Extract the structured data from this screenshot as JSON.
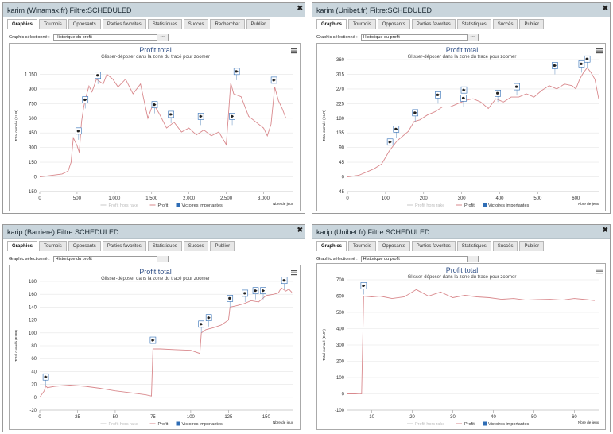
{
  "common": {
    "tabs": [
      "Graphics",
      "Tournois",
      "Opposants",
      "Parties favorites",
      "Statistiques",
      "Succès",
      "Rechercher",
      "Publier"
    ],
    "select_label": "Graphic sélectionné :",
    "select_value": "Historique du profit",
    "chart_title": "Profit total",
    "chart_subtitle": "Glisser-déposer dans la zone du tracé pour zoomer",
    "ylabel": "Total cumulé (EUR)",
    "xlabel": "Nbre de jeux",
    "legend": [
      "Profit hors rake",
      "Profit",
      "Victoires importantes"
    ],
    "colors": {
      "profit": "#d9898d",
      "rake": "#c8c8c8",
      "victory": "#2f6db5",
      "title": "#2f4f86"
    },
    "icons": {
      "close": "close-icon",
      "menu": "menu-icon",
      "victory_marker": "victory-flag-icon"
    }
  },
  "panels": [
    {
      "title": "karim (Winamax.fr) Filtre:SCHEDULED",
      "tabs": [
        "Graphics",
        "Tournois",
        "Opposants",
        "Parties favorites",
        "Statistiques",
        "Succès",
        "Rechercher",
        "Publier"
      ],
      "chart_data": {
        "type": "line",
        "title": "Profit total",
        "subtitle": "Glisser-déposer dans la zone du tracé pour zoomer",
        "ylabel": "Total cumulé (EUR)",
        "xlabel": "Nbre de jeux",
        "yticks": [
          "-150",
          "0",
          "150",
          "300",
          "450",
          "600",
          "750",
          "900",
          "1 050",
          "1,2K"
        ],
        "ylim": [
          -150,
          1200
        ],
        "xticks": [
          "0",
          "500",
          "1,000",
          "1,500",
          "2,000",
          "2,500",
          "3,000"
        ],
        "xlim": [
          0,
          3400
        ],
        "series": [
          {
            "name": "Profit",
            "x": [
              0,
              300,
              380,
              420,
              450,
              500,
              530,
              560,
              590,
              620,
              660,
              700,
              760,
              850,
              900,
              980,
              1050,
              1150,
              1250,
              1350,
              1450,
              1520,
              1600,
              1700,
              1800,
              1900,
              2000,
              2100,
              2200,
              2300,
              2400,
              2500,
              2560,
              2600,
              2700,
              2800,
              2900,
              3000,
              3050,
              3100,
              3150,
              3200,
              3250,
              3300
            ],
            "y": [
              0,
              30,
              60,
              150,
              400,
              320,
              250,
              560,
              720,
              820,
              930,
              870,
              1000,
              950,
              1050,
              1000,
              920,
              1000,
              850,
              950,
              600,
              750,
              650,
              500,
              560,
              460,
              500,
              430,
              480,
              420,
              460,
              330,
              960,
              850,
              820,
              620,
              560,
              500,
              420,
              540,
              920,
              780,
              700,
              600
            ]
          }
        ],
        "victories": [
          {
            "x": 520,
            "y": 380
          },
          {
            "x": 610,
            "y": 700
          },
          {
            "x": 780,
            "y": 950
          },
          {
            "x": 1540,
            "y": 650
          },
          {
            "x": 1760,
            "y": 550
          },
          {
            "x": 2160,
            "y": 530
          },
          {
            "x": 2580,
            "y": 530
          },
          {
            "x": 2640,
            "y": 990
          },
          {
            "x": 3140,
            "y": 900
          }
        ]
      }
    },
    {
      "title": "karim (Unibet.fr) Filtre:SCHEDULED",
      "tabs": [
        "Graphics",
        "Tournois",
        "Opposants",
        "Parties favorites",
        "Statistiques",
        "Succès",
        "Publier"
      ],
      "chart_data": {
        "type": "line",
        "title": "Profit total",
        "subtitle": "Glisser-déposer dans la zone du tracé pour zoomer",
        "ylabel": "Total cumulé (EUR)",
        "xlabel": "Nbre de jeux",
        "yticks": [
          "-45",
          "0",
          "45",
          "90",
          "135",
          "180",
          "225",
          "270",
          "315",
          "360"
        ],
        "ylim": [
          -45,
          360
        ],
        "xticks": [
          "0",
          "100",
          "200",
          "300",
          "400",
          "500",
          "600"
        ],
        "xlim": [
          0,
          660
        ],
        "series": [
          {
            "name": "Profit",
            "x": [
              0,
              30,
              50,
              70,
              90,
              100,
              110,
              120,
              130,
              140,
              150,
              160,
              175,
              190,
              210,
              230,
              250,
              270,
              290,
              300,
              310,
              330,
              350,
              370,
              390,
              410,
              430,
              450,
              470,
              490,
              510,
              530,
              550,
              570,
              590,
              600,
              610,
              620,
              630,
              640,
              650,
              660
            ],
            "y": [
              0,
              5,
              15,
              25,
              40,
              60,
              80,
              95,
              110,
              120,
              130,
              140,
              170,
              175,
              190,
              200,
              215,
              215,
              225,
              230,
              235,
              240,
              230,
              210,
              240,
              230,
              245,
              245,
              255,
              245,
              265,
              280,
              270,
              285,
              280,
              270,
              300,
              320,
              335,
              320,
              300,
              240
            ]
          }
        ],
        "victories": [
          {
            "x": 112,
            "y": 80
          },
          {
            "x": 128,
            "y": 120
          },
          {
            "x": 178,
            "y": 170
          },
          {
            "x": 238,
            "y": 225
          },
          {
            "x": 305,
            "y": 215
          },
          {
            "x": 306,
            "y": 240
          },
          {
            "x": 395,
            "y": 230
          },
          {
            "x": 445,
            "y": 250
          },
          {
            "x": 545,
            "y": 315
          },
          {
            "x": 615,
            "y": 320
          },
          {
            "x": 630,
            "y": 335
          }
        ]
      }
    },
    {
      "title": "karip (Barriere) Filtre:SCHEDULED",
      "tabs": [
        "Graphics",
        "Tournois",
        "Opposants",
        "Parties favorites",
        "Statistiques",
        "Succès",
        "Publier"
      ],
      "chart_data": {
        "type": "line",
        "title": "Profit total",
        "subtitle": "Glisser-déposer dans la zone du tracé pour zoomer",
        "ylabel": "Total cumulé (EUR)",
        "xlabel": "Nbre de jeux",
        "yticks": [
          "-20",
          "0",
          "20",
          "40",
          "60",
          "80",
          "100",
          "120",
          "140",
          "160",
          "180"
        ],
        "ylim": [
          -20,
          180
        ],
        "xticks": [
          "0",
          "25",
          "50",
          "75",
          "100",
          "125",
          "150"
        ],
        "xlim": [
          0,
          168
        ],
        "series": [
          {
            "name": "Profit",
            "x": [
              0,
              3,
              4,
              5,
              10,
              20,
              30,
              40,
              50,
              60,
              70,
              74,
              75,
              80,
              90,
              100,
              106,
              107,
              110,
              115,
              120,
              125,
              126,
              130,
              135,
              140,
              145,
              150,
              155,
              158,
              160,
              163,
              165,
              167
            ],
            "y": [
              0,
              10,
              18,
              15,
              17,
              19,
              17,
              14,
              10,
              7,
              4,
              2,
              75,
              75,
              74,
              73,
              68,
              100,
              105,
              108,
              112,
              120,
              140,
              142,
              145,
              150,
              148,
              158,
              160,
              162,
              170,
              165,
              168,
              163
            ]
          }
        ],
        "victories": [
          {
            "x": 4,
            "y": 18
          },
          {
            "x": 75,
            "y": 75
          },
          {
            "x": 107,
            "y": 100
          },
          {
            "x": 112,
            "y": 110
          },
          {
            "x": 126,
            "y": 140
          },
          {
            "x": 136,
            "y": 148
          },
          {
            "x": 143,
            "y": 152
          },
          {
            "x": 148,
            "y": 152
          },
          {
            "x": 162,
            "y": 168
          }
        ]
      }
    },
    {
      "title": "karip (Unibet.fr) Filtre:SCHEDULED",
      "tabs": [
        "Graphics",
        "Tournois",
        "Opposants",
        "Parties favorites",
        "Statistiques",
        "Succès",
        "Publier"
      ],
      "chart_data": {
        "type": "line",
        "title": "Profit total",
        "subtitle": "Glisser-déposer dans la zone du tracé pour zoomer",
        "ylabel": "Total cumulé (EUR)",
        "xlabel": "Nbre de jeux",
        "yticks": [
          "-100",
          "0",
          "100",
          "200",
          "300",
          "400",
          "500",
          "600",
          "700"
        ],
        "ylim": [
          -100,
          700
        ],
        "xticks": [
          "10",
          "20",
          "30",
          "40",
          "50",
          "60"
        ],
        "xlim": [
          4,
          66
        ],
        "series": [
          {
            "name": "Profit",
            "x": [
              4,
              6,
              7,
              7.5,
              8,
              10,
              12,
              15,
              18,
              21,
              24,
              27,
              30,
              33,
              36,
              39,
              42,
              45,
              48,
              51,
              54,
              57,
              60,
              63,
              65
            ],
            "y": [
              0,
              0,
              2,
              0,
              600,
              595,
              600,
              585,
              595,
              640,
              600,
              625,
              590,
              605,
              595,
              590,
              580,
              585,
              575,
              578,
              580,
              575,
              585,
              578,
              572
            ]
          }
        ],
        "victories": [
          {
            "x": 8,
            "y": 610
          }
        ]
      }
    }
  ]
}
